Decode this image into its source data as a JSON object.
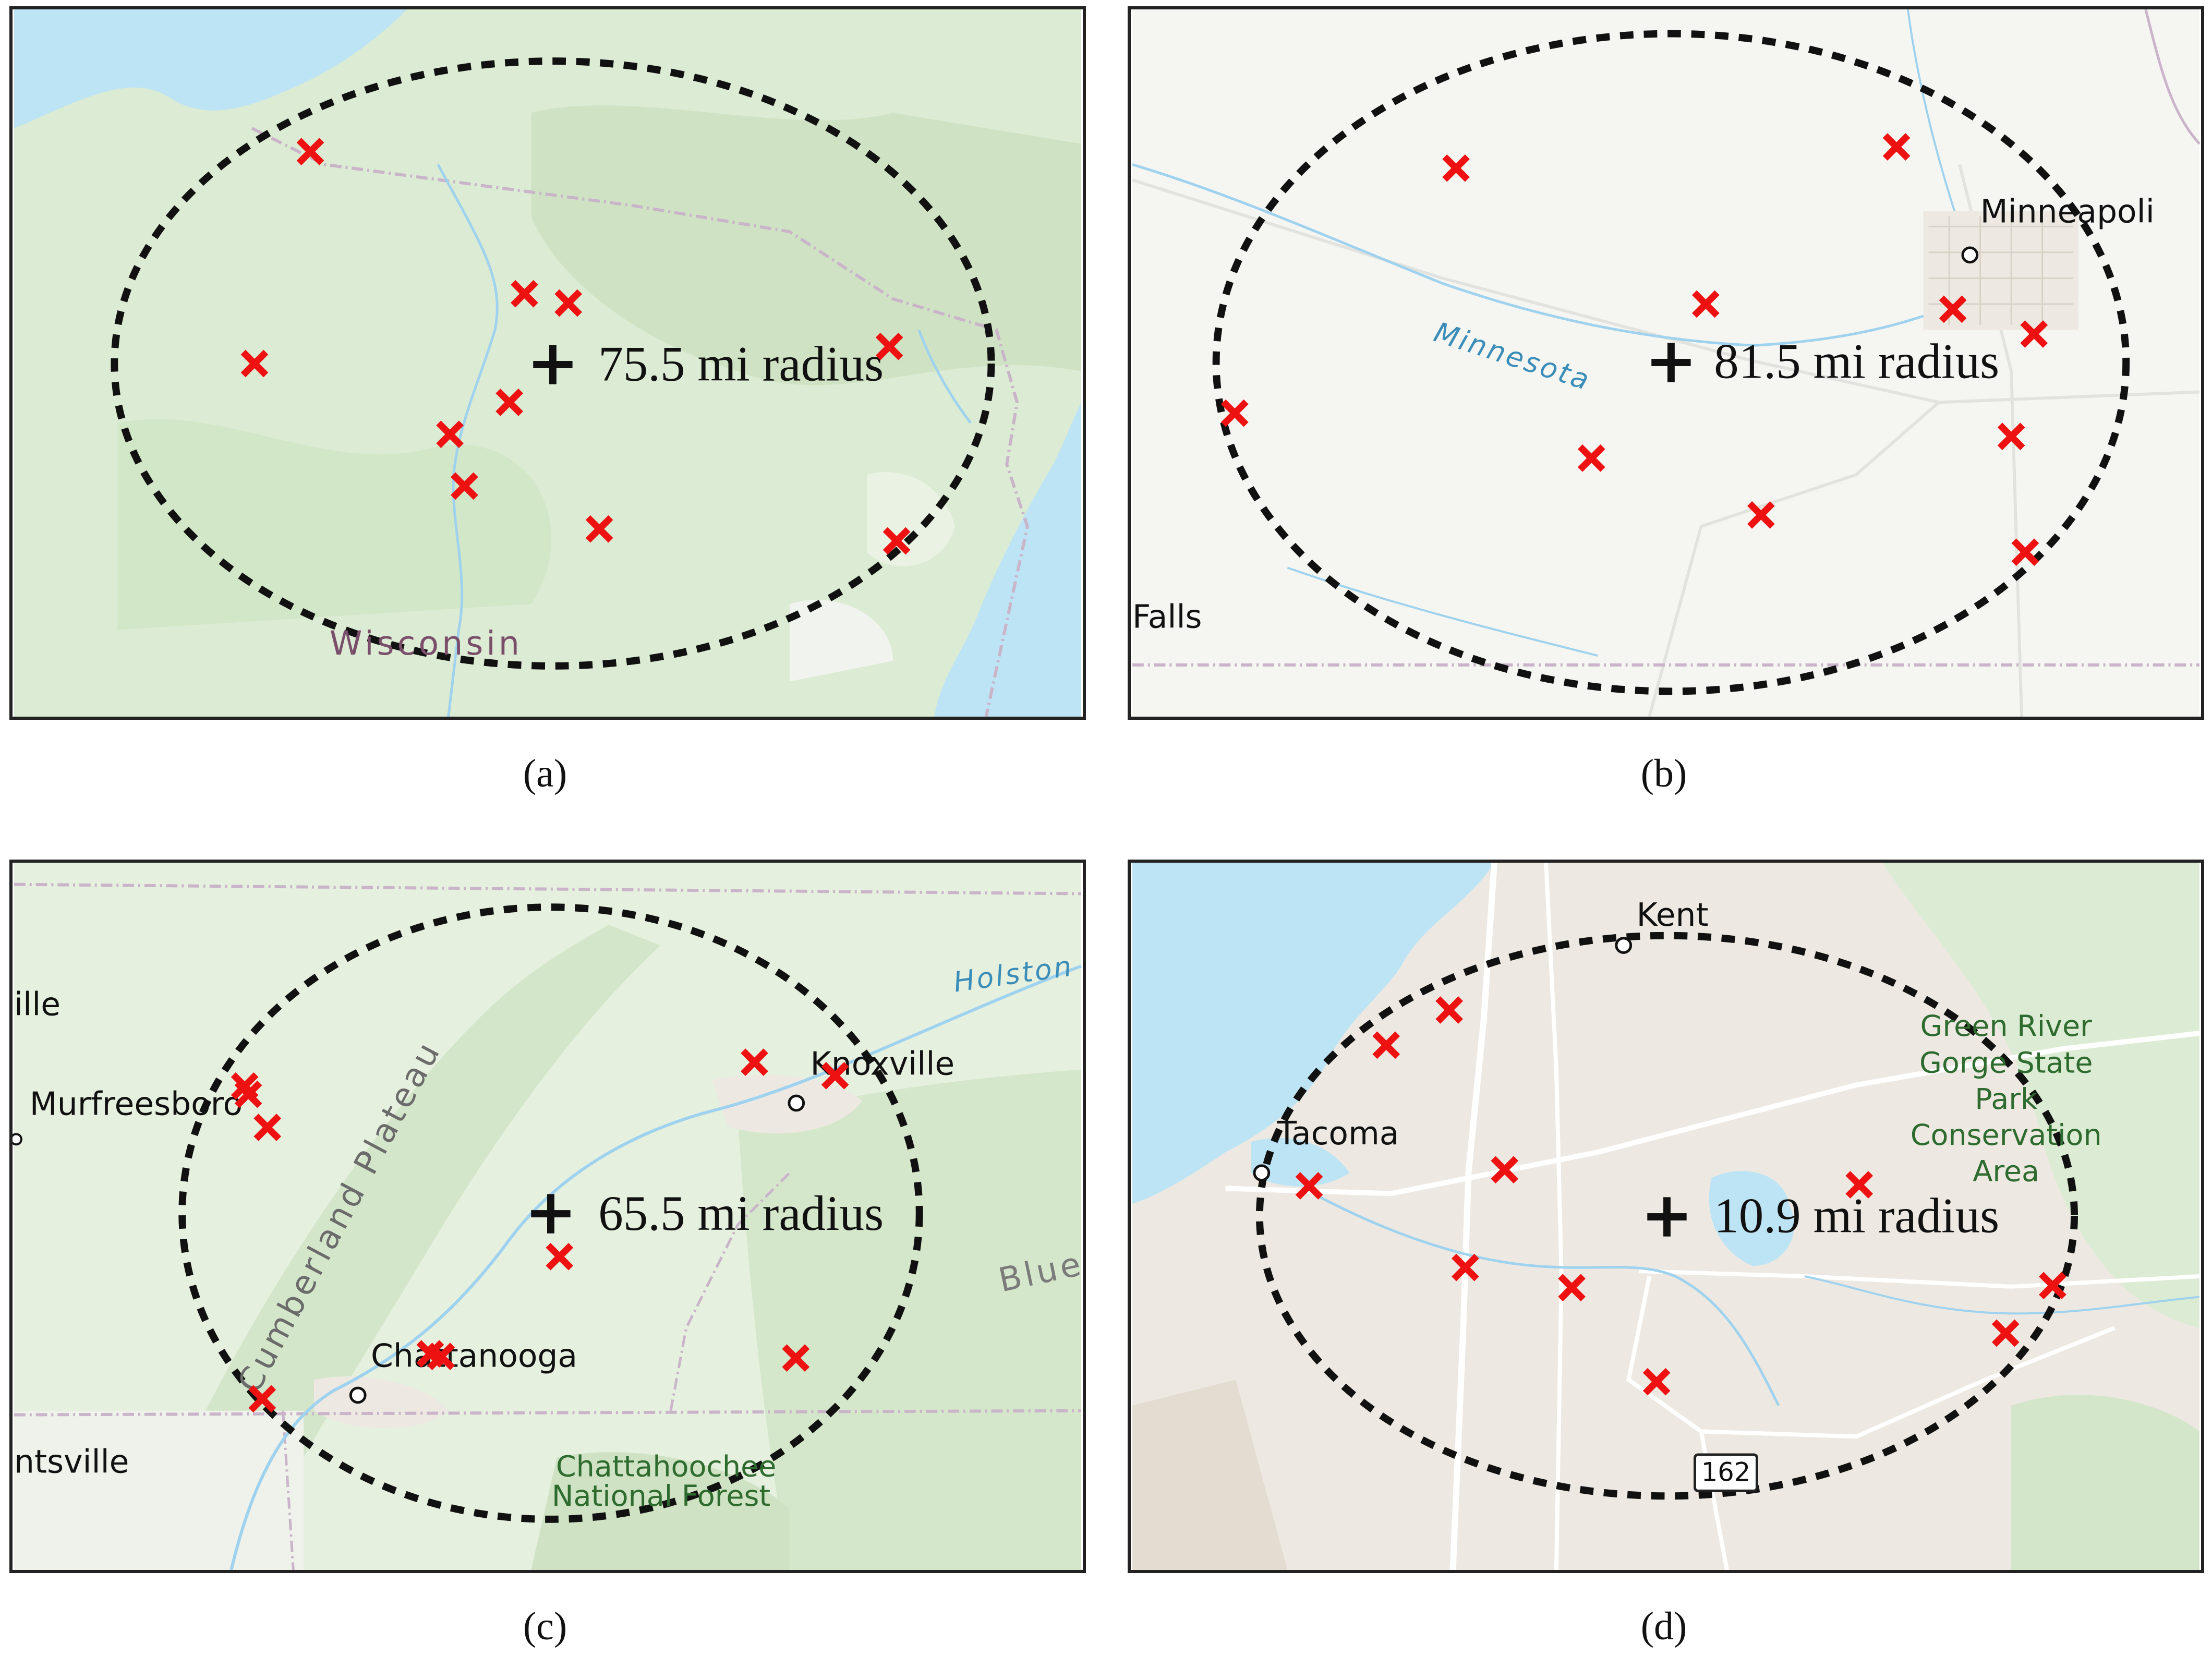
{
  "colors": {
    "marker": "#ee1111",
    "water": "#bde4f4",
    "forest_land": "#dcebd3",
    "plain_land": "#f5f5f2",
    "urban_land": "#ede9e2",
    "state_border": "#c9b4c9",
    "river": "#9fd2ee"
  },
  "marker_icon": "x-mark-icon",
  "center_icon": "plus-icon",
  "panels": {
    "a": {
      "caption": "(a)",
      "radius_label": "75.5 mi radius",
      "places": {
        "state": "Wisconsin"
      }
    },
    "b": {
      "caption": "(b)",
      "radius_label": "81.5 mi radius",
      "places": {
        "city": "Minneapoli",
        "river": "Minnesota",
        "falls": "Falls"
      }
    },
    "c": {
      "caption": "(c)",
      "radius_label": "65.5 mi radius",
      "places": {
        "ille": "ille",
        "murfreesboro": "Murfreesboro",
        "plateau": "Cumberland Plateau",
        "knoxville": "Knoxville",
        "holston": "Holston",
        "blue": "Blue",
        "chattanooga": "Chattanooga",
        "forest_line1": "Chattahoochee",
        "forest_line2": "National Forest",
        "ntsville": "ntsville"
      }
    },
    "d": {
      "caption": "(d)",
      "radius_label": "10.9 mi radius",
      "places": {
        "kent": "Kent",
        "tacoma": "Tacoma",
        "park_line1": "Green River",
        "park_line2": "Gorge State",
        "park_line3": "Park",
        "park_line4": "Conservation",
        "park_line5": "Area",
        "route": "162"
      }
    }
  }
}
